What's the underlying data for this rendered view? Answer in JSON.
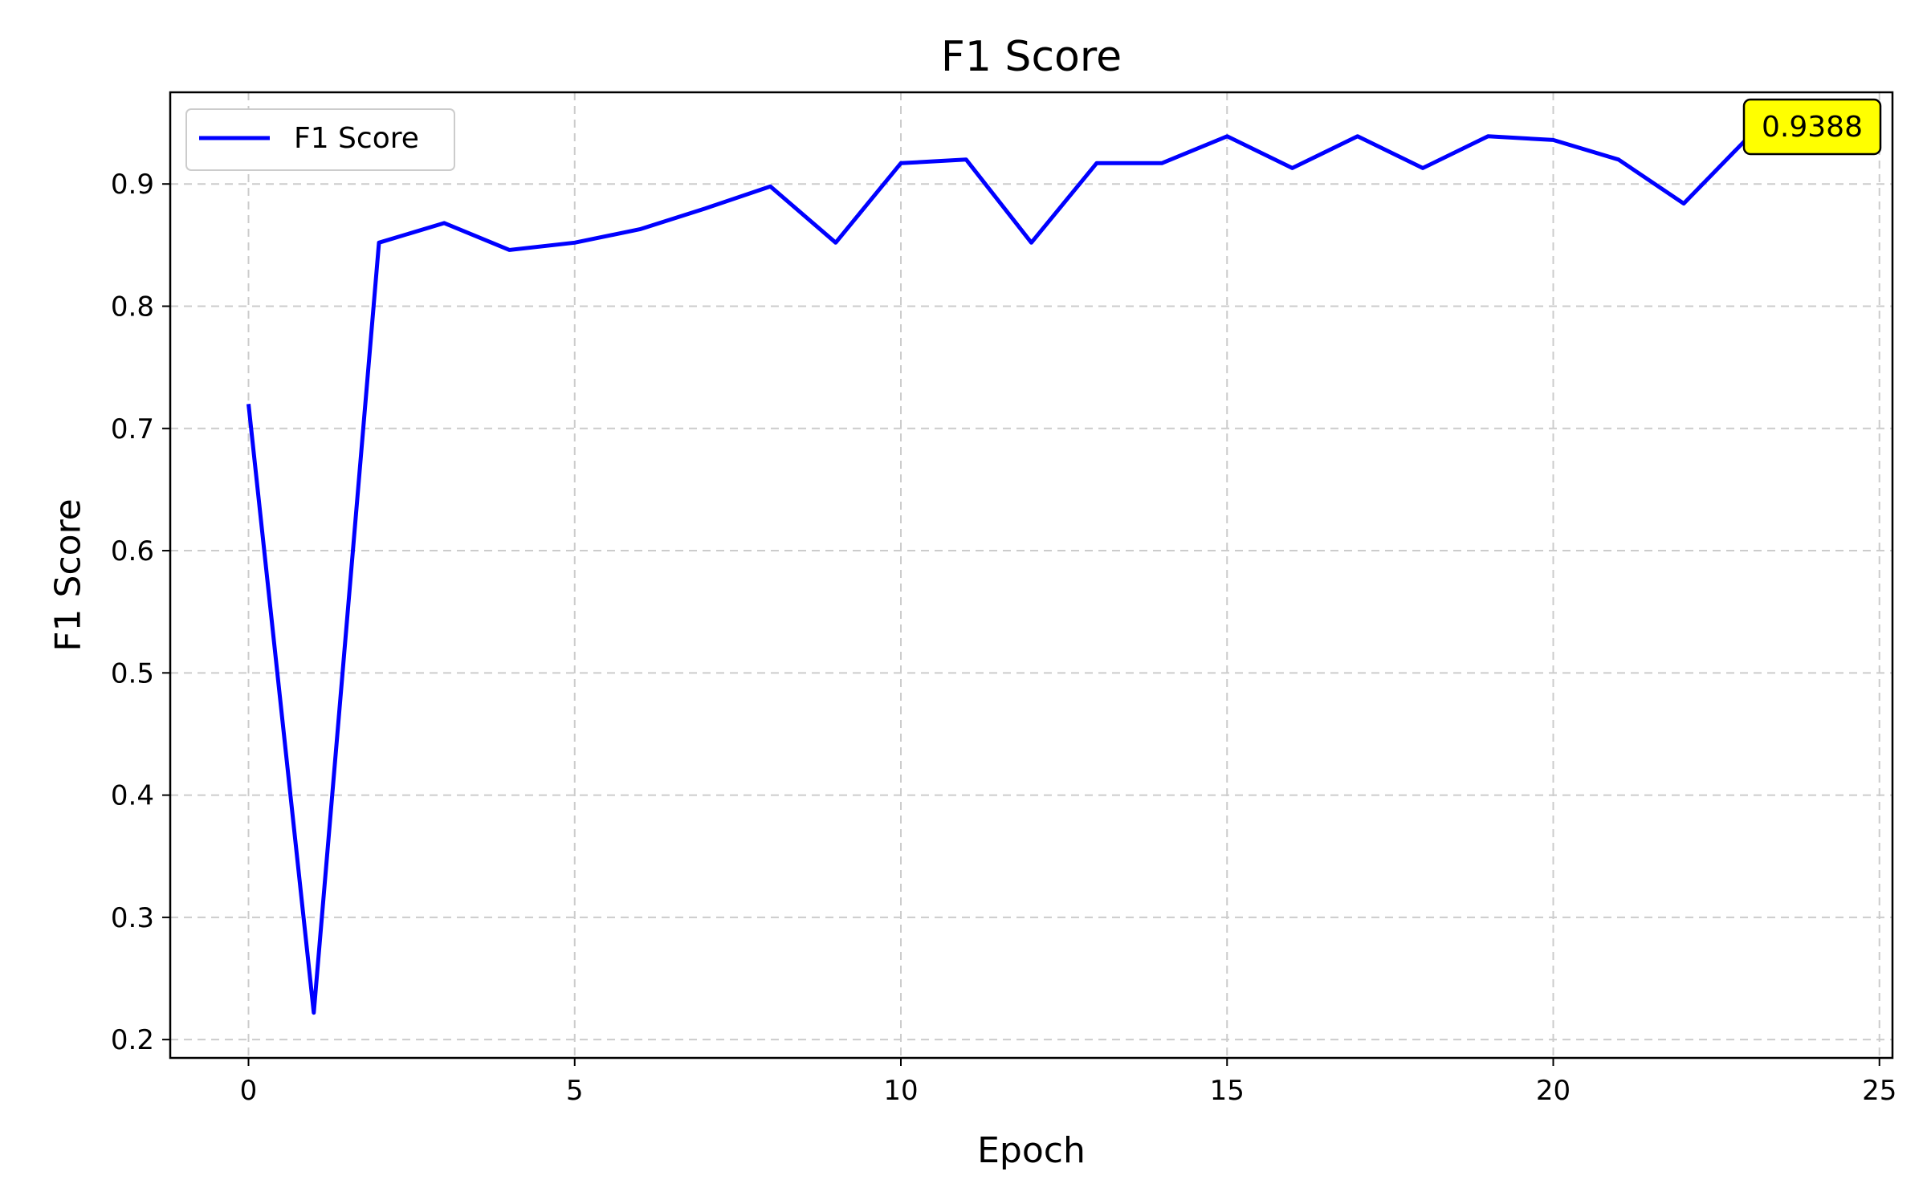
{
  "chart_data": {
    "type": "line",
    "title": "F1 Score",
    "xlabel": "Epoch",
    "ylabel": "F1 Score",
    "xlim": [
      -1.2,
      25.2
    ],
    "ylim": [
      0.185,
      0.975
    ],
    "xticks": [
      0,
      5,
      10,
      15,
      20,
      25
    ],
    "yticks": [
      0.2,
      0.3,
      0.4,
      0.5,
      0.6,
      0.7,
      0.8,
      0.9
    ],
    "grid": true,
    "legend_position": "top-left",
    "series": [
      {
        "name": "F1 Score",
        "color": "#0000ff",
        "x": [
          0,
          1,
          2,
          3,
          4,
          5,
          6,
          7,
          8,
          9,
          10,
          11,
          12,
          13,
          14,
          15,
          16,
          17,
          18,
          19,
          20,
          21,
          22,
          23
        ],
        "y": [
          0.72,
          0.222,
          0.852,
          0.868,
          0.846,
          0.852,
          0.863,
          0.88,
          0.898,
          0.852,
          0.917,
          0.92,
          0.852,
          0.917,
          0.917,
          0.939,
          0.913,
          0.939,
          0.913,
          0.939,
          0.936,
          0.92,
          0.884,
          0.9388
        ]
      }
    ],
    "annotation": {
      "text": "0.9388",
      "x": 23,
      "y": 0.9388,
      "color": "#ffff00"
    }
  }
}
